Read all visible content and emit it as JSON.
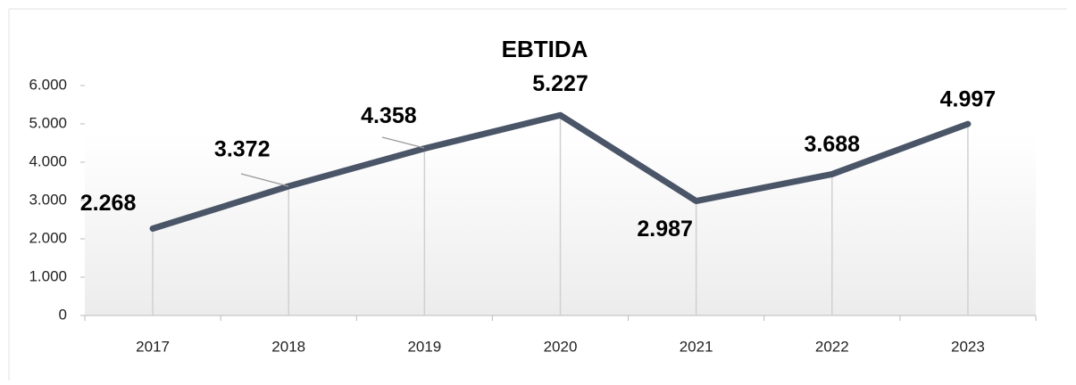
{
  "chart_data": {
    "type": "line",
    "title": "EBTIDA",
    "categories": [
      "2017",
      "2018",
      "2019",
      "2020",
      "2021",
      "2022",
      "2023"
    ],
    "series": [
      {
        "name": "EBTIDA",
        "color": "#4a5568",
        "values": [
          2268,
          3372,
          4358,
          5227,
          2987,
          3688,
          4997
        ],
        "value_labels": [
          "2.268",
          "3.372",
          "4.358",
          "5.227",
          "2.987",
          "3.688",
          "4.997"
        ]
      }
    ],
    "ylim": [
      0,
      6000
    ],
    "yticks": [
      0,
      {
        "value": 1000,
        "label": "1.000"
      },
      {
        "value": 2000,
        "label": "2.000"
      },
      {
        "value": 3000,
        "label": "3.000"
      },
      {
        "value": 4000,
        "label": "4.000"
      },
      {
        "value": 5000,
        "label": "5.000"
      },
      {
        "value": 6000,
        "label": "6.000"
      }
    ],
    "grid": false
  }
}
